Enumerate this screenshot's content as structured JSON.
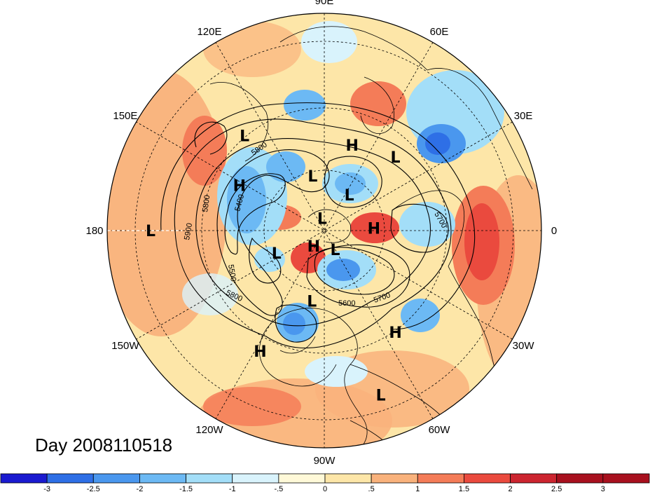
{
  "title": "Day 2008110518",
  "longitude_labels": [
    {
      "text": "90E",
      "deg": 90
    },
    {
      "text": "60E",
      "deg": 60
    },
    {
      "text": "30E",
      "deg": 30
    },
    {
      "text": "0",
      "deg": 0
    },
    {
      "text": "30W",
      "deg": -30
    },
    {
      "text": "60W",
      "deg": -60
    },
    {
      "text": "90W",
      "deg": -90
    },
    {
      "text": "120W",
      "deg": -120
    },
    {
      "text": "150W",
      "deg": -150
    },
    {
      "text": "180",
      "deg": 180
    },
    {
      "text": "150E",
      "deg": 150
    },
    {
      "text": "120E",
      "deg": 120
    }
  ],
  "pressure_centers": [
    {
      "type": "L",
      "lon": 130,
      "colat": 40
    },
    {
      "type": "L",
      "lon": 46,
      "colat": 33
    },
    {
      "type": "H",
      "lon": 72,
      "colat": 29
    },
    {
      "type": "H",
      "lon": 152,
      "colat": 31
    },
    {
      "type": "L",
      "lon": 102,
      "colat": 18
    },
    {
      "type": "L",
      "lon": 55,
      "colat": 14
    },
    {
      "type": "L",
      "lon": 100,
      "colat": 4
    },
    {
      "type": "H",
      "lon": 3,
      "colat": 16
    },
    {
      "type": "L",
      "lon": -155,
      "colat": 17
    },
    {
      "type": "H",
      "lon": -125,
      "colat": 6
    },
    {
      "type": "L",
      "lon": -60,
      "colat": 7
    },
    {
      "type": "L",
      "lon": -100,
      "colat": 23
    },
    {
      "type": "H",
      "lon": -55,
      "colat": 40
    },
    {
      "type": "H",
      "lon": -118,
      "colat": 44
    },
    {
      "type": "L",
      "lon": -71,
      "colat": 56
    },
    {
      "type": "L",
      "lon": 180,
      "colat": 56
    }
  ],
  "contour_labels": [
    "5900",
    "5800",
    "5800",
    "5400",
    "5500",
    "5800",
    "5600",
    "5700",
    "5700"
  ],
  "colorbar": {
    "ticks": [
      "-3",
      "-2.5",
      "-2",
      "-1.5",
      "-1",
      "-.5",
      "0",
      ".5",
      "1",
      "1.5",
      "2",
      "2.5",
      "3"
    ],
    "colors": [
      "#1a1ad0",
      "#2e6fe6",
      "#4a97ee",
      "#6cb9f4",
      "#a3def8",
      "#d9f3fc",
      "#fff9d8",
      "#fde6a8",
      "#f9b27c",
      "#f47c58",
      "#ea4a3e",
      "#cc2530",
      "#a8101e"
    ]
  }
}
